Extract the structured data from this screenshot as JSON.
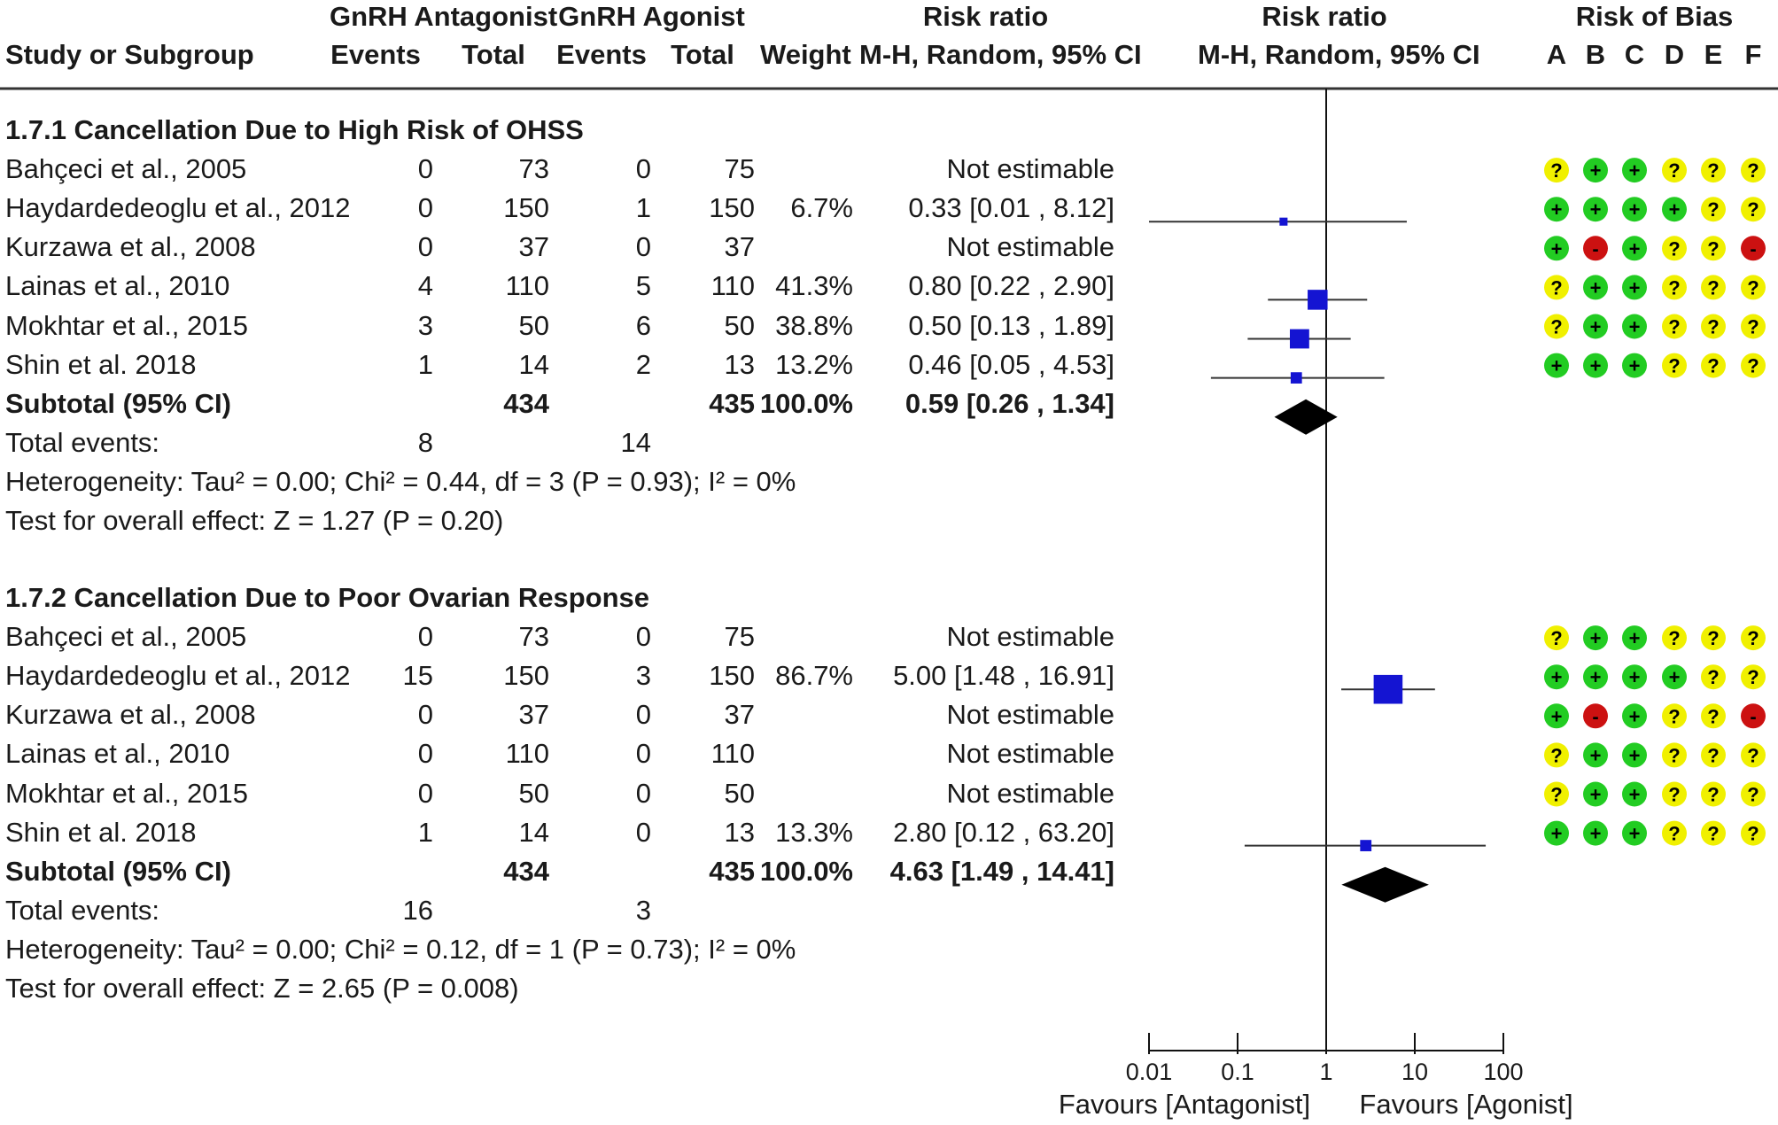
{
  "header": {
    "group1_title": "GnRH Antagonist",
    "group2_title": "GnRH Agonist",
    "rr_title_left": "Risk ratio",
    "rr_title_right": "Risk ratio",
    "rob_title": "Risk of Bias",
    "study_col": "Study or Subgroup",
    "events1": "Events",
    "total1": "Total",
    "events2": "Events",
    "total2": "Total",
    "weight": "Weight",
    "rr_method_left": "M-H, Random, 95% CI",
    "rr_method_right": "M-H, Random, 95% CI",
    "rob_letters": [
      "A",
      "B",
      "C",
      "D",
      "E",
      "F"
    ]
  },
  "groups": [
    {
      "title": "1.7.1 Cancellation Due to High Risk of OHSS",
      "studies": [
        {
          "name": "Bahçeci et al., 2005",
          "e1": "0",
          "t1": "73",
          "e2": "0",
          "t2": "75",
          "weight": "",
          "ci": "Not estimable",
          "rob": [
            "?",
            "+",
            "+",
            "?",
            "?",
            "?"
          ]
        },
        {
          "name": "Haydardedeoglu et al., 2012",
          "e1": "0",
          "t1": "150",
          "e2": "1",
          "t2": "150",
          "weight": "6.7%",
          "ci": "0.33 [0.01 , 8.12]",
          "rob": [
            "+",
            "+",
            "+",
            "+",
            "?",
            "?"
          ]
        },
        {
          "name": "Kurzawa et al., 2008",
          "e1": "0",
          "t1": "37",
          "e2": "0",
          "t2": "37",
          "weight": "",
          "ci": "Not estimable",
          "rob": [
            "+",
            "-",
            "+",
            "?",
            "?",
            "-"
          ]
        },
        {
          "name": "Lainas et al., 2010",
          "e1": "4",
          "t1": "110",
          "e2": "5",
          "t2": "110",
          "weight": "41.3%",
          "ci": "0.80 [0.22 , 2.90]",
          "rob": [
            "?",
            "+",
            "+",
            "?",
            "?",
            "?"
          ]
        },
        {
          "name": "Mokhtar et al., 2015",
          "e1": "3",
          "t1": "50",
          "e2": "6",
          "t2": "50",
          "weight": "38.8%",
          "ci": "0.50 [0.13 , 1.89]",
          "rob": [
            "?",
            "+",
            "+",
            "?",
            "?",
            "?"
          ]
        },
        {
          "name": "Shin et al. 2018",
          "e1": "1",
          "t1": "14",
          "e2": "2",
          "t2": "13",
          "weight": "13.2%",
          "ci": "0.46 [0.05 , 4.53]",
          "rob": [
            "+",
            "+",
            "+",
            "?",
            "?",
            "?"
          ]
        }
      ],
      "subtotal": {
        "label": "Subtotal (95% CI)",
        "t1": "434",
        "t2": "435",
        "weight": "100.0%",
        "ci": "0.59 [0.26 , 1.34]"
      },
      "total_events": {
        "label": "Total events:",
        "e1": "8",
        "e2": "14"
      },
      "heterogeneity": "Heterogeneity: Tau² = 0.00; Chi² = 0.44, df = 3 (P = 0.93); I² = 0%",
      "overall": "Test for overall effect: Z = 1.27 (P = 0.20)"
    },
    {
      "title": "1.7.2 Cancellation Due to Poor Ovarian Response",
      "studies": [
        {
          "name": "Bahçeci et al., 2005",
          "e1": "0",
          "t1": "73",
          "e2": "0",
          "t2": "75",
          "weight": "",
          "ci": "Not estimable",
          "rob": [
            "?",
            "+",
            "+",
            "?",
            "?",
            "?"
          ]
        },
        {
          "name": "Haydardedeoglu et al., 2012",
          "e1": "15",
          "t1": "150",
          "e2": "3",
          "t2": "150",
          "weight": "86.7%",
          "ci": "5.00 [1.48 , 16.91]",
          "rob": [
            "+",
            "+",
            "+",
            "+",
            "?",
            "?"
          ]
        },
        {
          "name": "Kurzawa et al., 2008",
          "e1": "0",
          "t1": "37",
          "e2": "0",
          "t2": "37",
          "weight": "",
          "ci": "Not estimable",
          "rob": [
            "+",
            "-",
            "+",
            "?",
            "?",
            "-"
          ]
        },
        {
          "name": "Lainas et al., 2010",
          "e1": "0",
          "t1": "110",
          "e2": "0",
          "t2": "110",
          "weight": "",
          "ci": "Not estimable",
          "rob": [
            "?",
            "+",
            "+",
            "?",
            "?",
            "?"
          ]
        },
        {
          "name": "Mokhtar et al., 2015",
          "e1": "0",
          "t1": "50",
          "e2": "0",
          "t2": "50",
          "weight": "",
          "ci": "Not estimable",
          "rob": [
            "?",
            "+",
            "+",
            "?",
            "?",
            "?"
          ]
        },
        {
          "name": "Shin et al. 2018",
          "e1": "1",
          "t1": "14",
          "e2": "0",
          "t2": "13",
          "weight": "13.3%",
          "ci": "2.80 [0.12 , 63.20]",
          "rob": [
            "+",
            "+",
            "+",
            "?",
            "?",
            "?"
          ]
        }
      ],
      "subtotal": {
        "label": "Subtotal (95% CI)",
        "t1": "434",
        "t2": "435",
        "weight": "100.0%",
        "ci": "4.63 [1.49 , 14.41]"
      },
      "total_events": {
        "label": "Total events:",
        "e1": "16",
        "e2": "3"
      },
      "heterogeneity": "Heterogeneity: Tau² = 0.00; Chi² = 0.12, df = 1 (P = 0.73); I² = 0%",
      "overall": "Test for overall effect: Z = 2.65 (P = 0.008)"
    }
  ],
  "chart_data": {
    "type": "forest",
    "scale": "log",
    "xlim": [
      0.01,
      100
    ],
    "ticks": [
      0.01,
      0.1,
      1,
      10,
      100
    ],
    "tick_labels": [
      "0.01",
      "0.1",
      "1",
      "10",
      "100"
    ],
    "null_line": 1,
    "xlabel_left": "Favours [Antagonist]",
    "xlabel_right": "Favours [Agonist]",
    "series": [
      {
        "name": "1.7.1 Cancellation Due to High Risk of OHSS",
        "studies": [
          {
            "name": "Haydardedeoglu et al., 2012",
            "rr": 0.33,
            "lo": 0.01,
            "hi": 8.12,
            "weight": 6.7
          },
          {
            "name": "Lainas et al., 2010",
            "rr": 0.8,
            "lo": 0.22,
            "hi": 2.9,
            "weight": 41.3
          },
          {
            "name": "Mokhtar et al., 2015",
            "rr": 0.5,
            "lo": 0.13,
            "hi": 1.89,
            "weight": 38.8
          },
          {
            "name": "Shin et al. 2018",
            "rr": 0.46,
            "lo": 0.05,
            "hi": 4.53,
            "weight": 13.2
          }
        ],
        "pooled": {
          "rr": 0.59,
          "lo": 0.26,
          "hi": 1.34
        }
      },
      {
        "name": "1.7.2 Cancellation Due to Poor Ovarian Response",
        "studies": [
          {
            "name": "Haydardedeoglu et al., 2012",
            "rr": 5.0,
            "lo": 1.48,
            "hi": 16.91,
            "weight": 86.7
          },
          {
            "name": "Shin et al. 2018",
            "rr": 2.8,
            "lo": 0.12,
            "hi": 63.2,
            "weight": 13.3
          }
        ],
        "pooled": {
          "rr": 4.63,
          "lo": 1.49,
          "hi": 14.41
        }
      }
    ]
  },
  "colors": {
    "study_marker": "#1414d2",
    "pooled": "#000000",
    "rob_low": "#22cc22",
    "rob_unclear": "#f0f000",
    "rob_high": "#cc1111"
  }
}
